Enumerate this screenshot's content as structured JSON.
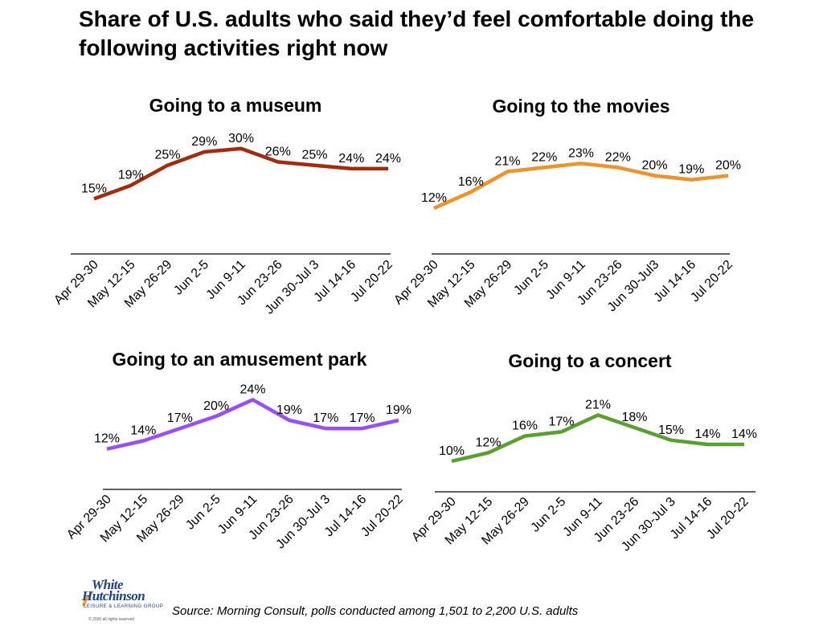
{
  "title": "Share of U.S. adults who said they’d feel comfortable doing the following activities right now",
  "source": "Source: Morning Consult, polls conducted among 1,501 to 2,200 U.S. adults",
  "logo": {
    "line1": "White",
    "line2": "Hutchinson",
    "tagline": "LEISURE & LEARNING GROUP",
    "copyright": "© 2020 all rights reserved"
  },
  "chart_data": [
    {
      "type": "line",
      "title": "Going to a museum",
      "color": "#a52a0a",
      "categories": [
        "Apr 29-30",
        "May 12-15",
        "May 26-29",
        "Jun 2-5",
        "Jun 9-11",
        "Jun 23-26",
        "Jun 30-Jul 3",
        "Jul 14-16",
        "Jul 20-22"
      ],
      "values": [
        15,
        19,
        25,
        29,
        30,
        26,
        25,
        24,
        24
      ],
      "labels": [
        "15%",
        "19%",
        "25%",
        "29%",
        "30%",
        "26%",
        "25%",
        "24%",
        "24%"
      ],
      "ylim": [
        0,
        35
      ]
    },
    {
      "type": "line",
      "title": "Going to the movies",
      "color": "#f0922a",
      "categories": [
        "Apr 29-30",
        "May 12-15",
        "May 26-29",
        "Jun 2-5",
        "Jun 9-11",
        "Jun 23-26",
        "Jun 30-Jul3",
        "Jul 14-16",
        "Jul 20-22"
      ],
      "values": [
        12,
        16,
        21,
        22,
        23,
        22,
        20,
        19,
        20
      ],
      "labels": [
        "12%",
        "16%",
        "21%",
        "22%",
        "23%",
        "22%",
        "20%",
        "19%",
        "20%"
      ],
      "ylim": [
        0,
        28
      ]
    },
    {
      "type": "line",
      "title": "Going to an amusement park",
      "color": "#9a4dff",
      "categories": [
        "Apr 29-30",
        "May 12-15",
        "May 26-29",
        "Jun 2-5",
        "Jun 9-11",
        "Jun 23-26",
        "Jun 30-Jul 3",
        "Jul 14-16",
        "Jul 20-22"
      ],
      "values": [
        12,
        14,
        17,
        20,
        24,
        19,
        17,
        17,
        19
      ],
      "labels": [
        "12%",
        "14%",
        "17%",
        "20%",
        "24%",
        "19%",
        "17%",
        "17%",
        "19%"
      ],
      "ylim": [
        0,
        28
      ]
    },
    {
      "type": "line",
      "title": "Going to a concert",
      "color": "#5aa02c",
      "categories": [
        "Apr 29-30",
        "May 12-15",
        "May 26-29",
        "Jun 2-5",
        "Jun 9-11",
        "Jun 23-26",
        "Jun 30-Jul 3",
        "Jul 14-16",
        "Jul 20-22"
      ],
      "values": [
        10,
        12,
        16,
        17,
        21,
        18,
        15,
        14,
        14
      ],
      "labels": [
        "10%",
        "12%",
        "16%",
        "17%",
        "21%",
        "18%",
        "15%",
        "14%",
        "14%"
      ],
      "ylim": [
        0,
        28
      ]
    }
  ]
}
